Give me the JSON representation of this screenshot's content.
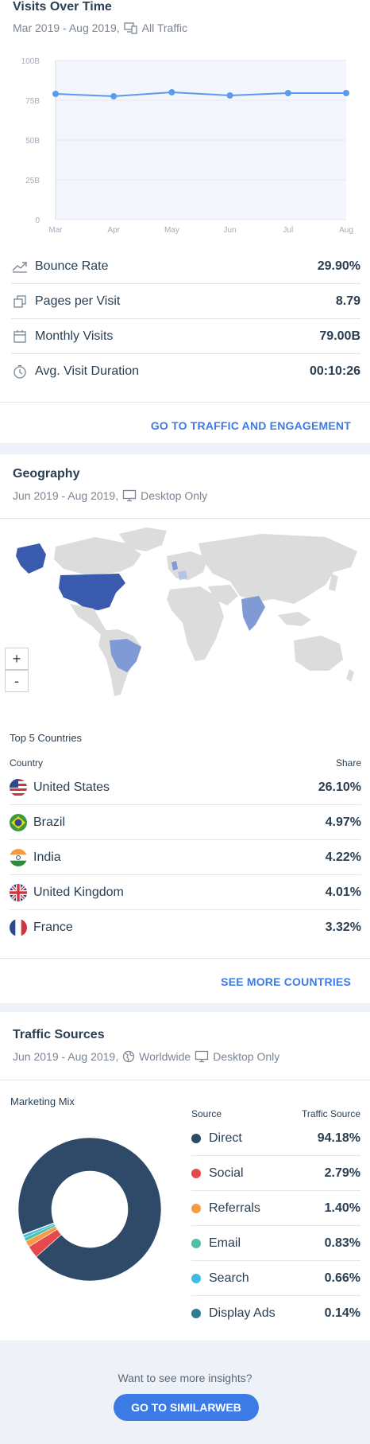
{
  "visits": {
    "title": "Visits Over Time",
    "date_range": "Mar 2019 - Aug 2019,",
    "traffic_filter": "All Traffic",
    "metrics": [
      {
        "label": "Bounce Rate",
        "value": "29.90%",
        "icon": "trend-icon"
      },
      {
        "label": "Pages per Visit",
        "value": "8.79",
        "icon": "pages-icon"
      },
      {
        "label": "Monthly Visits",
        "value": "79.00B",
        "icon": "calendar-icon"
      },
      {
        "label": "Avg. Visit Duration",
        "value": "00:10:26",
        "icon": "clock-icon"
      }
    ],
    "link": "GO TO TRAFFIC AND ENGAGEMENT"
  },
  "chart_data": {
    "type": "line",
    "categories": [
      "Mar",
      "Apr",
      "May",
      "Jun",
      "Jul",
      "Aug"
    ],
    "values": [
      79,
      77.5,
      80,
      78,
      79.5,
      79.5
    ],
    "ylim": [
      0,
      100
    ],
    "yticks": [
      "0",
      "25B",
      "50B",
      "75B",
      "100B"
    ],
    "color": "#5b9aec"
  },
  "geography": {
    "title": "Geography",
    "date_range": "Jun 2019 - Aug 2019,",
    "device_filter": "Desktop Only",
    "zoom_in": "+",
    "zoom_out": "-",
    "top_label": "Top 5 Countries",
    "col_country": "Country",
    "col_share": "Share",
    "countries": [
      {
        "name": "United States",
        "share": "26.10%",
        "flag": "us-flag-icon"
      },
      {
        "name": "Brazil",
        "share": "4.97%",
        "flag": "brazil-flag-icon"
      },
      {
        "name": "India",
        "share": "4.22%",
        "flag": "india-flag-icon"
      },
      {
        "name": "United Kingdom",
        "share": "4.01%",
        "flag": "uk-flag-icon"
      },
      {
        "name": "France",
        "share": "3.32%",
        "flag": "france-flag-icon"
      }
    ],
    "link": "SEE MORE COUNTRIES"
  },
  "traffic": {
    "title": "Traffic Sources",
    "date_range": "Jun 2019 - Aug 2019,",
    "region_filter": "Worldwide",
    "device_filter": "Desktop Only",
    "mix_label": "Marketing Mix",
    "col_source": "Source",
    "col_traffic": "Traffic Source",
    "sources": [
      {
        "name": "Direct",
        "value": "94.18%",
        "pct": 94.18,
        "color": "#2e4a68"
      },
      {
        "name": "Social",
        "value": "2.79%",
        "pct": 2.79,
        "color": "#e5494d"
      },
      {
        "name": "Referrals",
        "value": "1.40%",
        "pct": 1.4,
        "color": "#f79a45"
      },
      {
        "name": "Email",
        "value": "0.83%",
        "pct": 0.83,
        "color": "#4fbfa8"
      },
      {
        "name": "Search",
        "value": "0.66%",
        "pct": 0.66,
        "color": "#3fbde0"
      },
      {
        "name": "Display Ads",
        "value": "0.14%",
        "pct": 0.14,
        "color": "#2c7f93"
      }
    ]
  },
  "cta": {
    "prompt": "Want to see more insights?",
    "button": "GO TO SIMILARWEB"
  }
}
